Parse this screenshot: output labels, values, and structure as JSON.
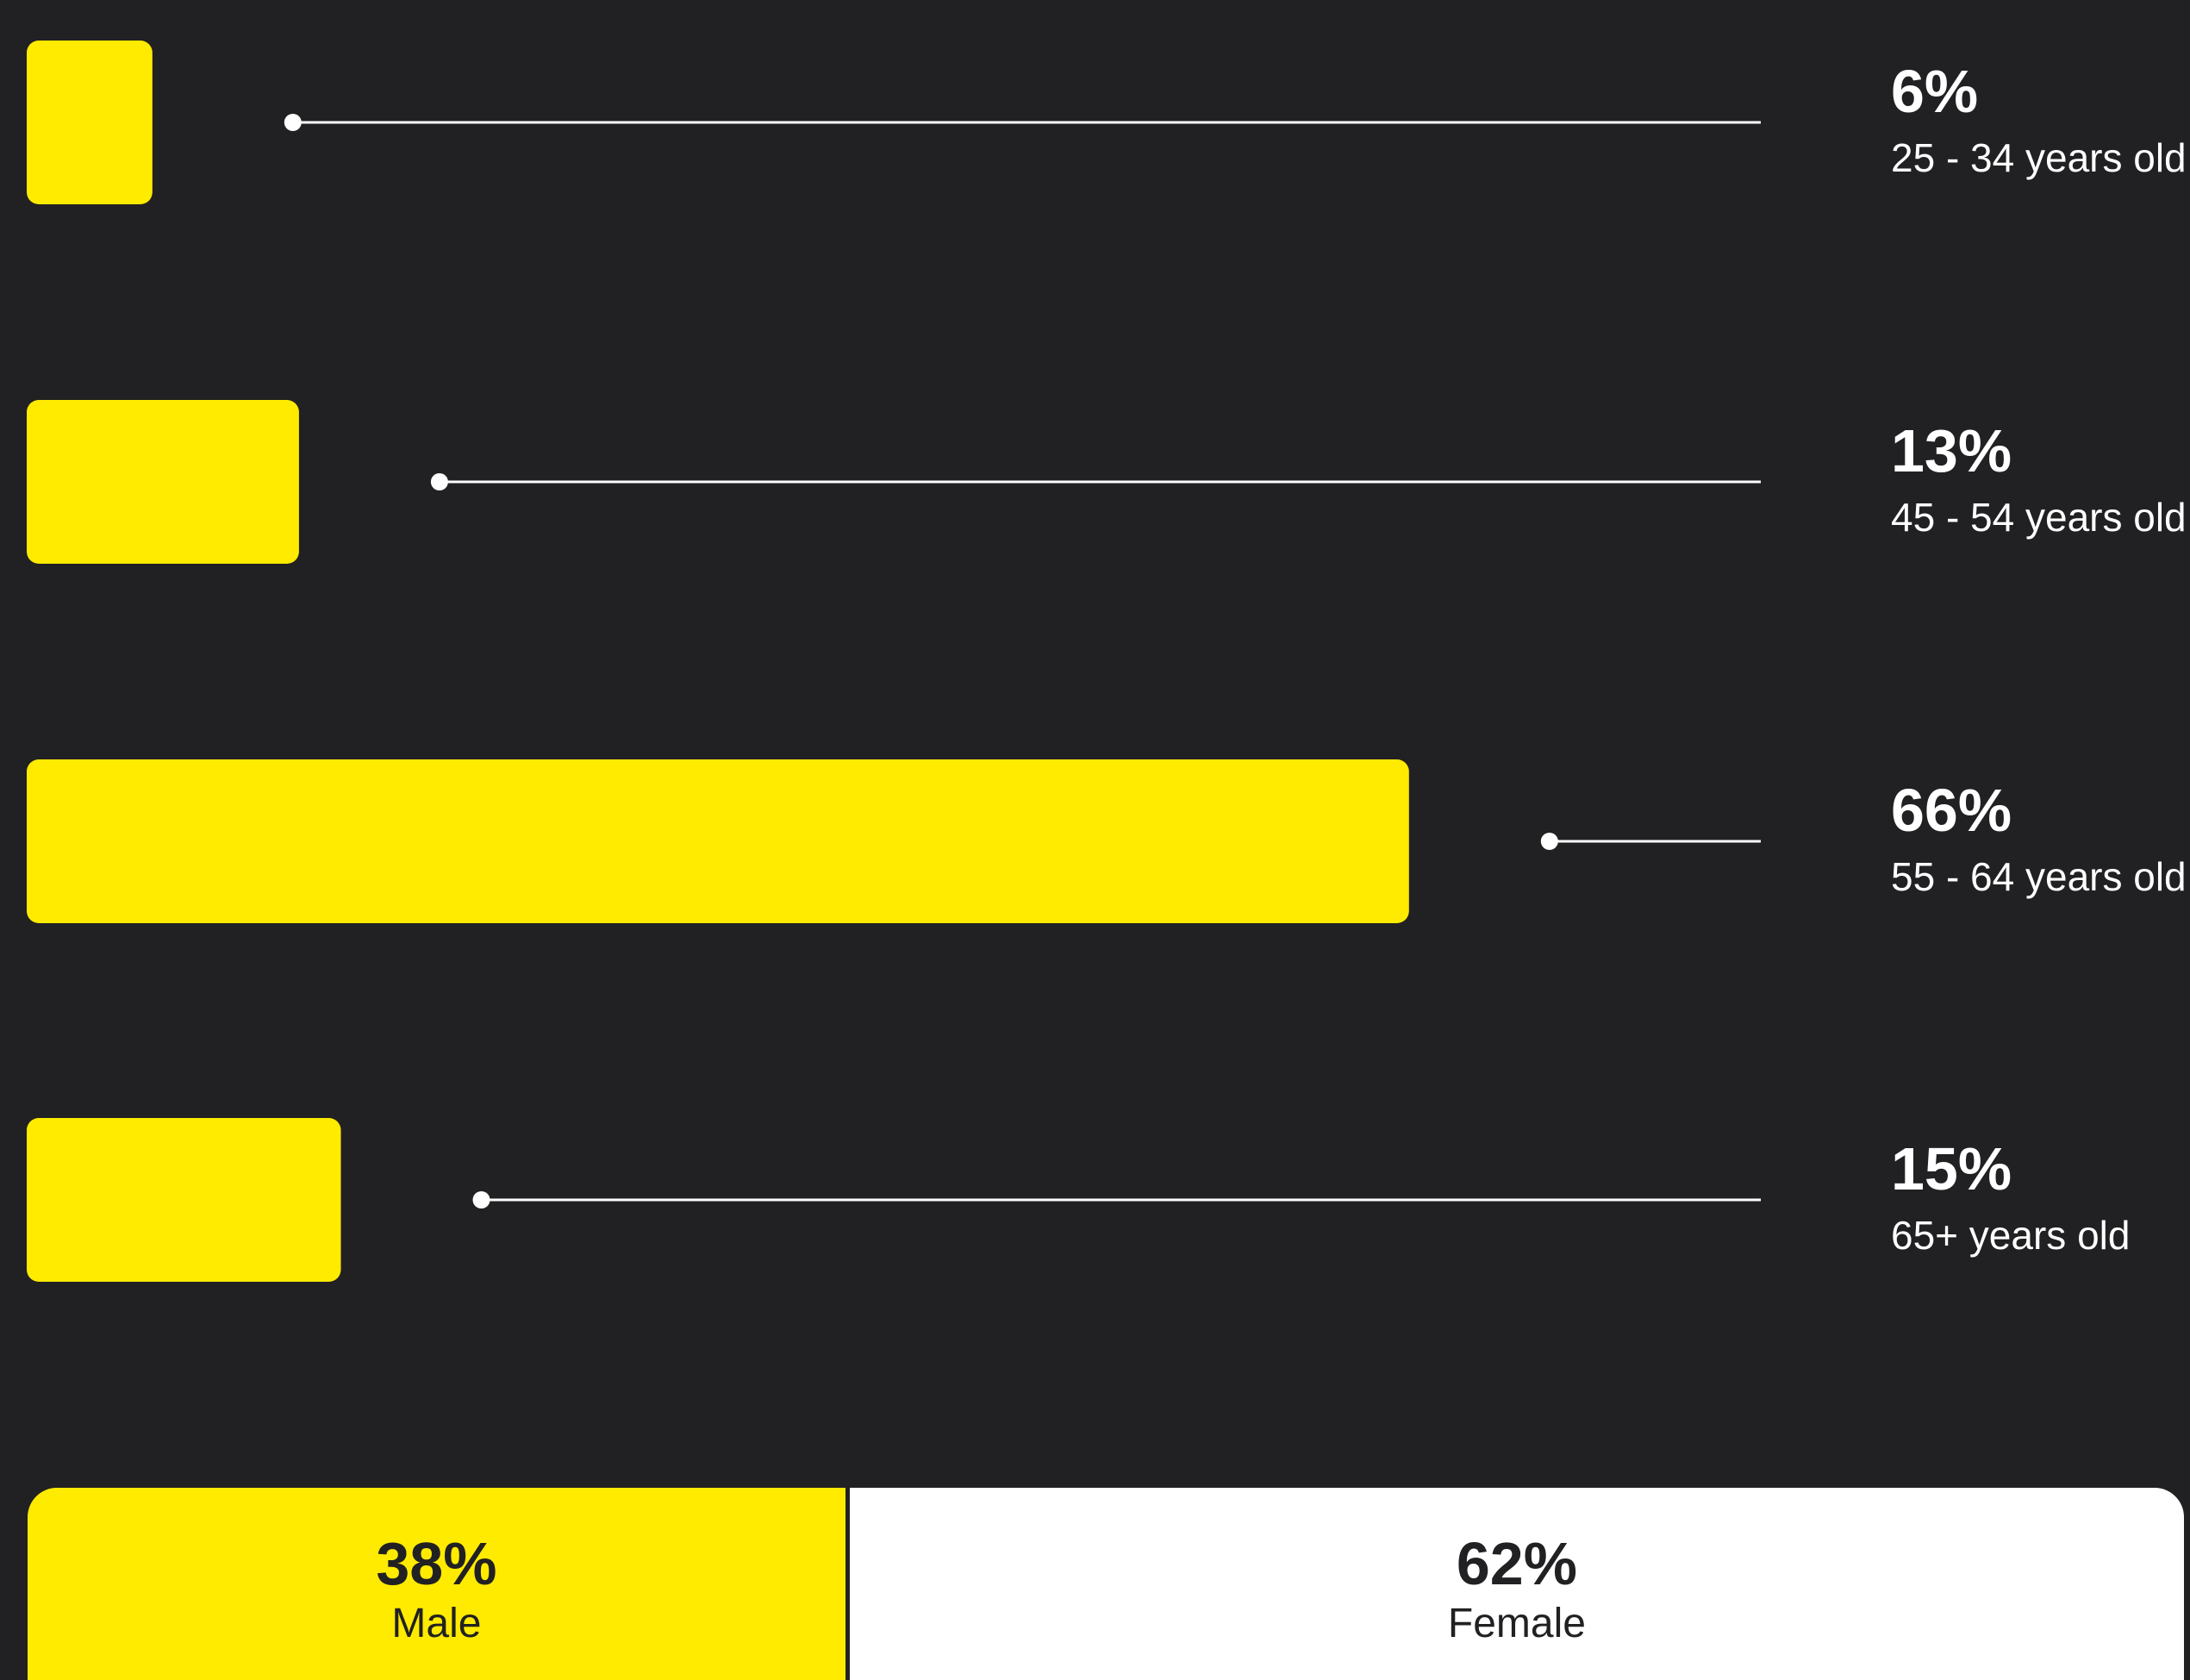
{
  "chart_data": [
    {
      "type": "bar",
      "orientation": "horizontal",
      "categories": [
        "25 - 34 years old",
        "45 - 54 years old",
        "55 - 64 years old",
        "65+ years old"
      ],
      "values": [
        6,
        13,
        66,
        15
      ],
      "value_labels": [
        "6%",
        "13%",
        "66%",
        "15%"
      ],
      "xlim": [
        0,
        100
      ],
      "grid": false,
      "legend": "none",
      "colors": {
        "bar": "#FFEB00",
        "leader_line": "#FFFFFF",
        "text": "#FFFFFF",
        "background": "#212123"
      }
    },
    {
      "type": "bar",
      "orientation": "horizontal",
      "stacked": true,
      "categories": [
        "Male",
        "Female"
      ],
      "values": [
        38,
        62
      ],
      "value_labels": [
        "38%",
        "62%"
      ],
      "colors": {
        "male": "#FFEB00",
        "female": "#FFFFFF",
        "text": "#212123"
      }
    }
  ]
}
